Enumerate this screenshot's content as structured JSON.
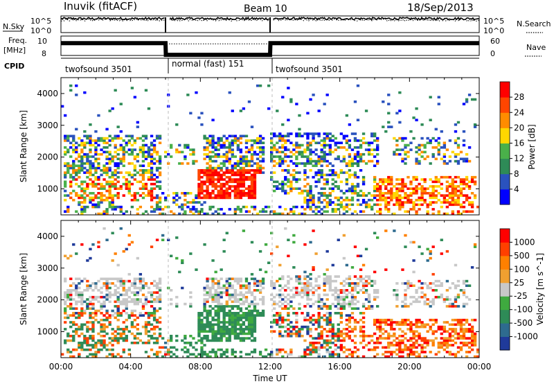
{
  "header": {
    "station": "Inuvik (fitACF)",
    "beam": "Beam 10",
    "date": "18/Sep/2013"
  },
  "left_labels": {
    "nsky": "N.Sky",
    "freq": "Freq.",
    "freq_unit": "[MHz]",
    "cpid": "CPID"
  },
  "right_labels": {
    "nsearch": "N.Search",
    "nave": "Nave"
  },
  "chart_data": [
    {
      "type": "line",
      "name": "noise",
      "y_tick_labels": [
        "10^5",
        "10^0"
      ],
      "right_tick_labels": [
        "10^5",
        "10^0"
      ],
      "ylim_log10": [
        0,
        5
      ],
      "gaps_hours": [
        [
          6.0,
          6.2
        ],
        [
          12.0,
          12.15
        ]
      ],
      "series": [
        {
          "name": "N.Sky",
          "style": "solid",
          "level_log10": 4.2
        },
        {
          "name": "N.Search",
          "style": "dotted",
          "level_log10": 3.8
        }
      ]
    },
    {
      "type": "line",
      "name": "frequency",
      "y_tick_labels": [
        "10",
        "8"
      ],
      "right_tick_labels": [
        "60",
        "0"
      ],
      "ylim": [
        7.5,
        10.5
      ],
      "series": [
        {
          "name": "Freq.",
          "style": "solid",
          "x": [
            0,
            6,
            6.02,
            12,
            12.02,
            24
          ],
          "y": [
            9.4,
            9.4,
            7.6,
            7.6,
            9.4,
            9.4
          ]
        },
        {
          "name": "Nave",
          "style": "dotted",
          "x": [
            6.2,
            12
          ],
          "y": [
            9.3,
            9.3
          ]
        }
      ]
    },
    {
      "type": "table",
      "name": "cpid",
      "segments": [
        {
          "start": 0,
          "end": 6,
          "label": "twofsound 3501"
        },
        {
          "start": 6,
          "end": 12,
          "label": "normal (fast) 151"
        },
        {
          "start": 12,
          "end": 24,
          "label": "twofsound 3501"
        }
      ]
    },
    {
      "type": "heatmap",
      "name": "power",
      "ylabel": "Slant Range [km]",
      "ylim": [
        180,
        4500
      ],
      "yticks": [
        1000,
        2000,
        3000,
        4000
      ],
      "colorbar_label": "Power [dB]",
      "colorbar_ticks": [
        4,
        8,
        12,
        16,
        20,
        24,
        28
      ],
      "colorbar_colors": [
        "#0000ff",
        "#2a52be",
        "#2e8b57",
        "#4ab04a",
        "#ffd700",
        "#ff8c00",
        "#ff4500",
        "#ff0000"
      ]
    },
    {
      "type": "heatmap",
      "name": "velocity",
      "ylabel": "Slant Range [km]",
      "ylim": [
        180,
        4500
      ],
      "yticks": [
        1000,
        2000,
        3000,
        4000
      ],
      "colorbar_label": "Velocity [m s^-1]",
      "colorbar_ticks": [
        "1000",
        "500",
        "100",
        "25",
        "-25",
        "-100",
        "-500",
        "-1000"
      ],
      "colorbar_colors": [
        "#1f3a9a",
        "#2e6b8f",
        "#2e8b57",
        "#3faa3f",
        "#c8c8c8",
        "#f0a030",
        "#ff8000",
        "#ff4000",
        "#ff0000"
      ],
      "xlabel": "Time UT",
      "xticks": [
        "00:00",
        "04:00",
        "08:00",
        "12:00",
        "16:00",
        "20:00",
        "00:00"
      ]
    }
  ]
}
